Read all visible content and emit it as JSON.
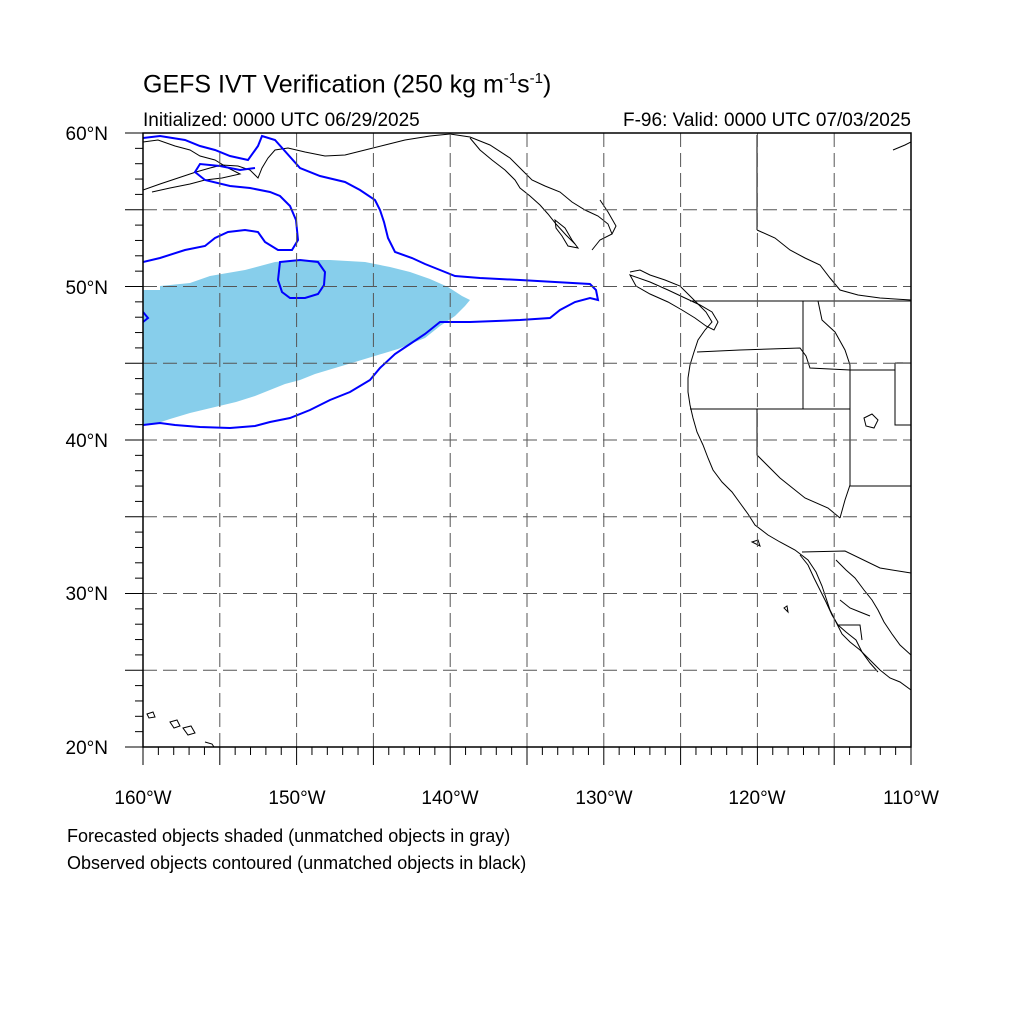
{
  "title": {
    "main": "GEFS IVT Verification (250 kg m",
    "exp1": "-1",
    "mid": "s",
    "exp2": "-1",
    "end": ")"
  },
  "init_label": "Initialized: 0000 UTC 06/29/2025",
  "valid_label": "F-96: Valid: 0000 UTC 07/03/2025",
  "notes": [
    "Forecasted objects shaded (unmatched objects in gray)",
    "Observed objects contoured (unmatched objects in black)"
  ],
  "map": {
    "lon_range": [
      -160,
      -110
    ],
    "lat_range": [
      20,
      60
    ],
    "lat_ticks": [
      "20°N",
      "30°N",
      "40°N",
      "50°N",
      "60°N"
    ],
    "lon_ticks": [
      "160°W",
      "150°W",
      "140°W",
      "130°W",
      "120°W",
      "110°W"
    ],
    "grid_style": "dashed",
    "colors": {
      "forecast_fill": "#87ceeb",
      "observed_contour": "#0000ff",
      "coastline": "#000000"
    }
  }
}
